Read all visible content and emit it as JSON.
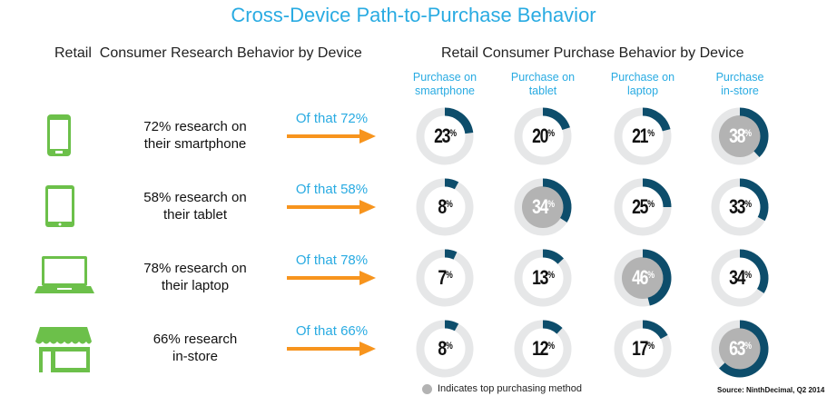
{
  "title": "Cross-Device Path-to-Purchase Behavior",
  "left_header": "Retail  Consumer Research Behavior by Device",
  "right_header": "Retail Consumer Purchase Behavior by Device",
  "colors": {
    "accent": "#29abe2",
    "ring": "#e6e7e8",
    "fill": "#0d4d6b",
    "top": "#b3b3b3",
    "icon": "#6cc04a",
    "arrow": "#f7941d"
  },
  "chart_data": {
    "type": "donut-grid",
    "columns": [
      "Purchase on smartphone",
      "Purchase on tablet",
      "Purchase on laptop",
      "Purchase in-store"
    ],
    "rows": [
      {
        "icon": "smartphone-icon",
        "line1": "72% research on",
        "line2": "their smartphone",
        "of_that": "Of that 72%",
        "values": [
          23,
          20,
          21,
          38
        ],
        "top_index": 3
      },
      {
        "icon": "tablet-icon",
        "line1": "58% research on",
        "line2": "their tablet",
        "of_that": "Of that 58%",
        "values": [
          8,
          34,
          25,
          33
        ],
        "top_index": 1
      },
      {
        "icon": "laptop-icon",
        "line1": "78% research on",
        "line2": "their laptop",
        "of_that": "Of that 78%",
        "values": [
          7,
          13,
          46,
          34
        ],
        "top_index": 2
      },
      {
        "icon": "store-icon",
        "line1": "66% research",
        "line2": "in-store",
        "of_that": "Of that 66%",
        "values": [
          8,
          12,
          17,
          63
        ],
        "top_index": 3
      }
    ],
    "unit": "%"
  },
  "col_headers": [
    [
      "Purchase on",
      "smartphone"
    ],
    [
      "Purchase on",
      "tablet"
    ],
    [
      "Purchase on",
      "laptop"
    ],
    [
      "Purchase",
      "in-store"
    ]
  ],
  "legend": "Indicates top purchasing method",
  "source": "Source: NinthDecimal, Q2 2014"
}
